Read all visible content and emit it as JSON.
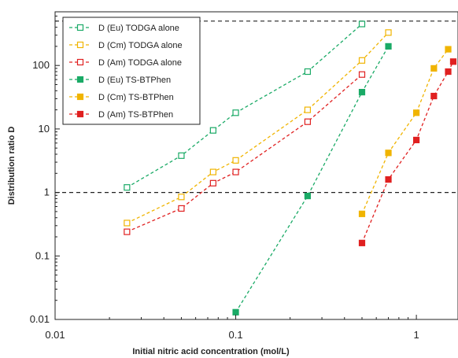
{
  "chart_data": {
    "type": "scatter",
    "xlabel": "Initial nitric acid concentration (mol/L)",
    "ylabel": "Distribution ratio D",
    "xscale": "log",
    "yscale": "log",
    "xlim": [
      0.01,
      1.7
    ],
    "ylim": [
      0.01,
      700
    ],
    "x_ticks": [
      0.01,
      0.1,
      1
    ],
    "x_tick_labels": [
      "0.01",
      "0.1",
      "1"
    ],
    "y_ticks": [
      0.01,
      0.1,
      1,
      10,
      100
    ],
    "y_tick_labels": [
      "0.01",
      "0.1",
      "1",
      "10",
      "100"
    ],
    "reference_lines": [
      500,
      1
    ],
    "legend_position": "top-left",
    "series": [
      {
        "name": "D (Eu) TODGA alone",
        "color": "#1aaa66",
        "marker": "open-square",
        "x": [
          0.025,
          0.05,
          0.075,
          0.1,
          0.25,
          0.5
        ],
        "y": [
          1.2,
          3.8,
          9.5,
          18,
          80,
          450
        ]
      },
      {
        "name": "D (Cm) TODGA alone",
        "color": "#f0b400",
        "marker": "open-square",
        "x": [
          0.025,
          0.05,
          0.075,
          0.1,
          0.25,
          0.5,
          0.7
        ],
        "y": [
          0.33,
          0.85,
          2.1,
          3.2,
          20,
          120,
          330
        ]
      },
      {
        "name": "D (Am) TODGA alone",
        "color": "#e02020",
        "marker": "open-square",
        "x": [
          0.025,
          0.05,
          0.075,
          0.1,
          0.25,
          0.5
        ],
        "y": [
          0.24,
          0.56,
          1.4,
          2.1,
          13,
          72
        ]
      },
      {
        "name": "D (Eu) TS-BTPhen",
        "color": "#1aaa66",
        "marker": "filled-square",
        "x": [
          0.1,
          0.25,
          0.5,
          0.7
        ],
        "y": [
          0.013,
          0.88,
          38,
          200
        ]
      },
      {
        "name": "D (Cm) TS-BTPhen",
        "color": "#f0b400",
        "marker": "filled-square",
        "x": [
          0.5,
          0.7,
          1.0,
          1.25,
          1.5
        ],
        "y": [
          0.46,
          4.2,
          18,
          90,
          180
        ]
      },
      {
        "name": "D (Am) TS-BTPhen",
        "color": "#e02020",
        "marker": "filled-square",
        "x": [
          0.5,
          0.7,
          1.0,
          1.25,
          1.5,
          1.6
        ],
        "y": [
          0.16,
          1.6,
          6.7,
          33,
          80,
          115
        ]
      }
    ]
  }
}
